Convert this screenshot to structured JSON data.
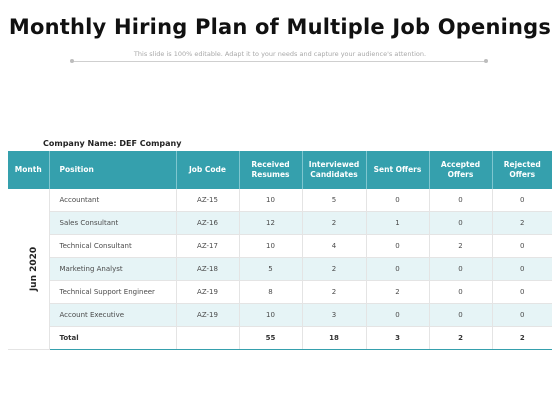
{
  "title": "Monthly Hiring Plan of Multiple Job Openings",
  "subtitle": "This slide is 100% editable. Adapt it to your needs and capture your audience's attention.",
  "company_label": "Company Name: DEF Company",
  "colors": {
    "header": "#35a0ad",
    "stripe": "#e6f4f6"
  },
  "table": {
    "headers": [
      "Month",
      "Position",
      "Job Code",
      "Received Resumes",
      "Interviewed Candidates",
      "Sent Offers",
      "Accepted Offers",
      "Rejected Offers"
    ],
    "month": "Jun 2020",
    "rows": [
      [
        "Accountant",
        "AZ-15",
        "10",
        "5",
        "0",
        "0",
        "0"
      ],
      [
        "Sales Consultant",
        "AZ-16",
        "12",
        "2",
        "1",
        "0",
        "2"
      ],
      [
        "Technical Consultant",
        "AZ-17",
        "10",
        "4",
        "0",
        "2",
        "0"
      ],
      [
        "Marketing Analyst",
        "AZ-18",
        "5",
        "2",
        "0",
        "0",
        "0"
      ],
      [
        "Technical Support Engineer",
        "AZ-19",
        "8",
        "2",
        "2",
        "0",
        "0"
      ],
      [
        "Account Executive",
        "AZ-19",
        "10",
        "3",
        "0",
        "0",
        "0"
      ]
    ],
    "total": [
      "Total",
      "",
      "55",
      "18",
      "3",
      "2",
      "2"
    ]
  }
}
